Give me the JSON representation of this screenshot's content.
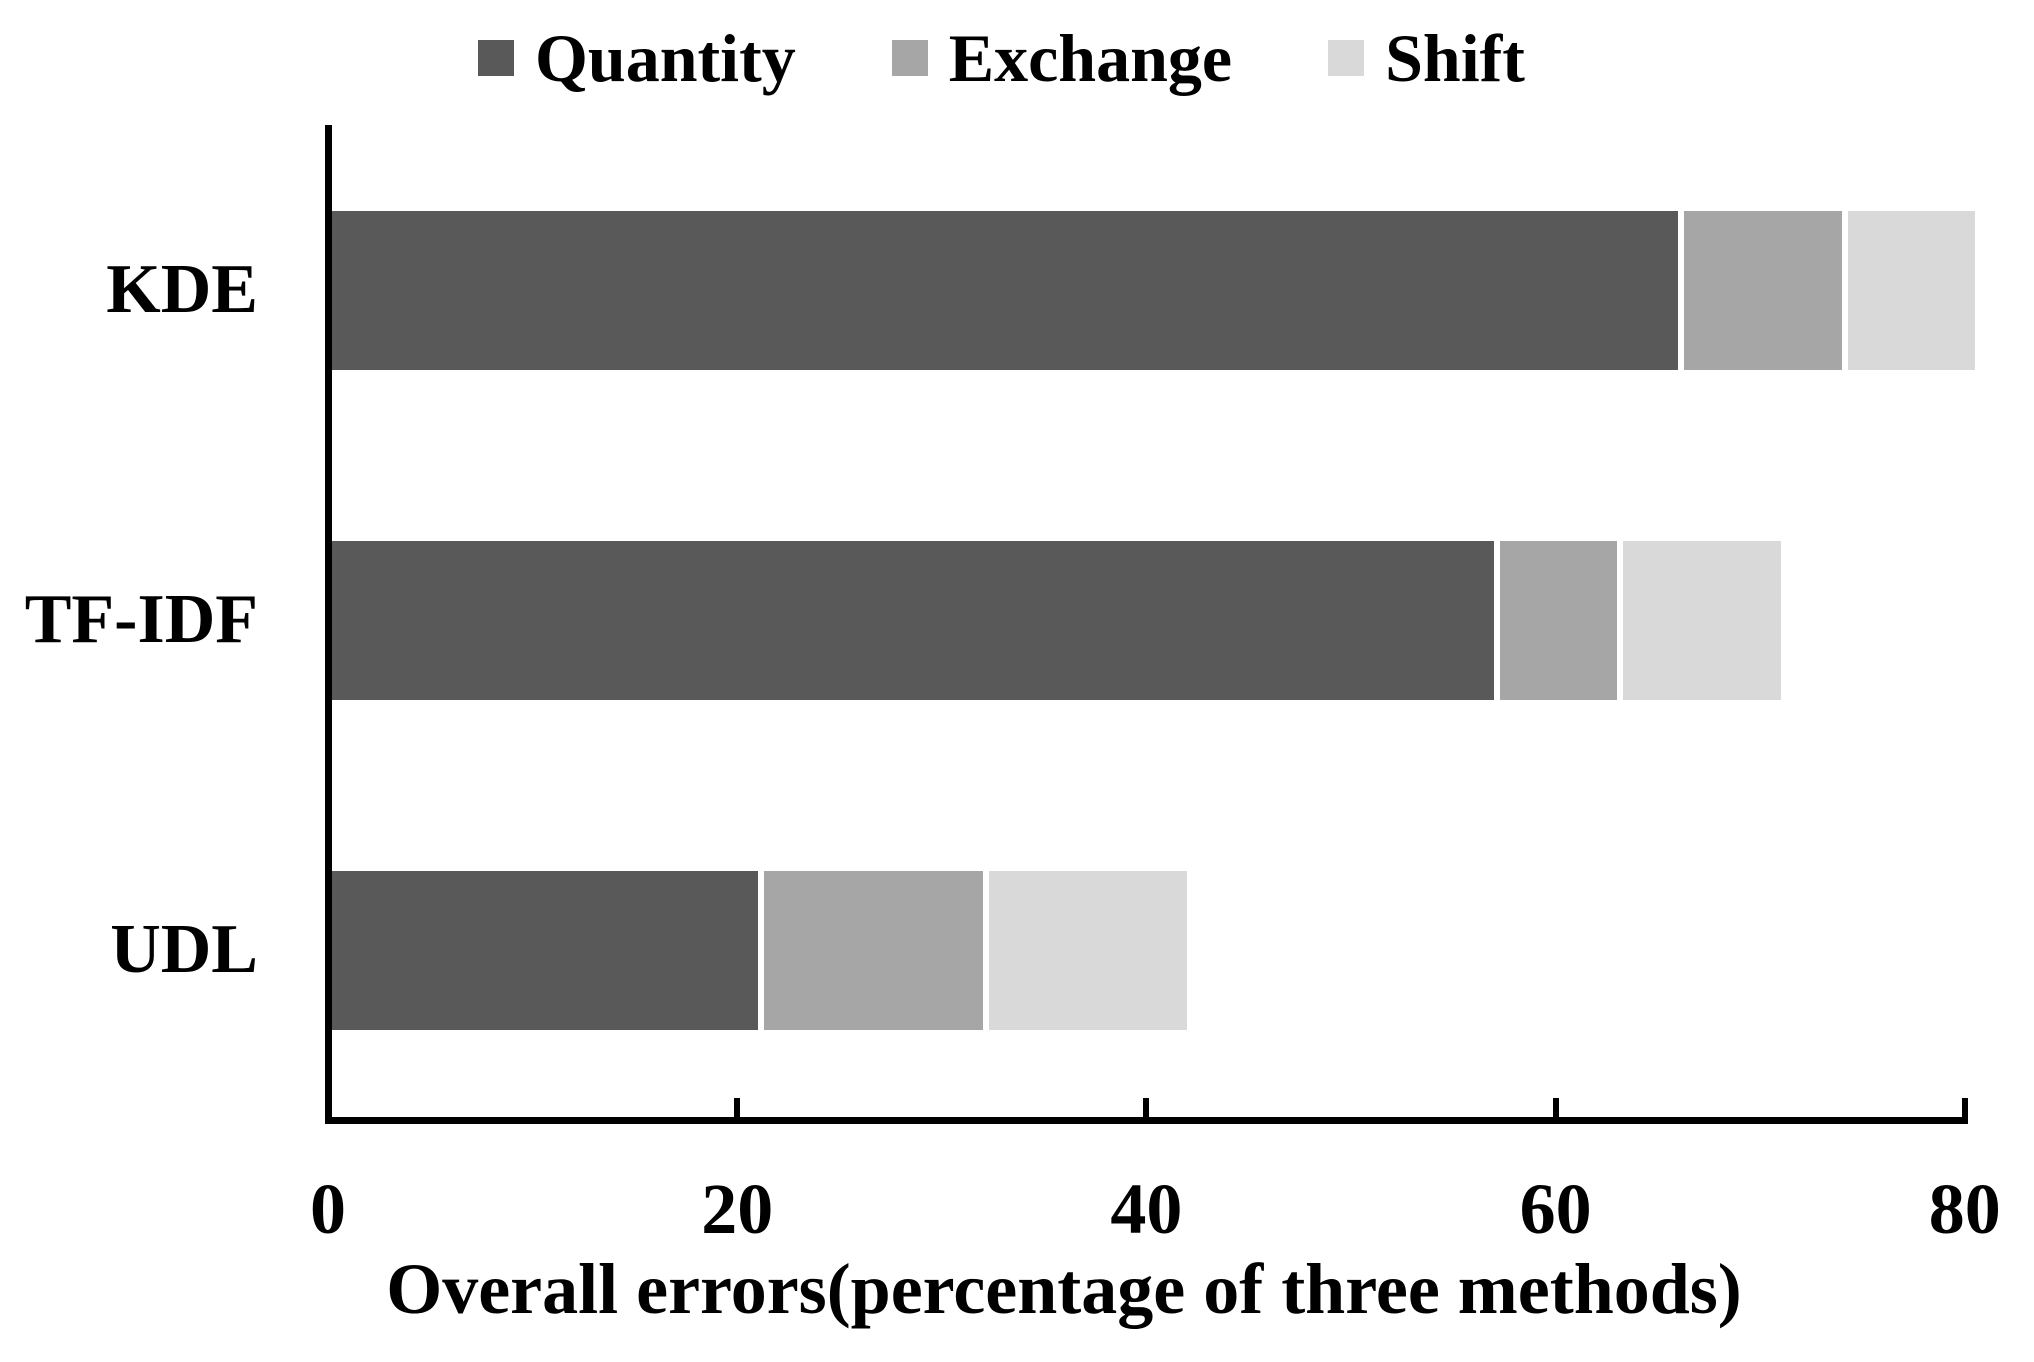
{
  "chart_data": {
    "type": "bar",
    "orientation": "horizontal",
    "stacked": true,
    "title": "",
    "xlabel": "Overall errors(percentage of three methods)",
    "ylabel": "",
    "xlim": [
      0,
      80
    ],
    "xticks": [
      0,
      20,
      40,
      60,
      80
    ],
    "xtick_labels": [
      "0",
      "20",
      "40",
      "60",
      "80"
    ],
    "grid": false,
    "legend_position": "top",
    "categories": [
      "KDE",
      "TF-IDF",
      "UDL"
    ],
    "series": [
      {
        "name": "Quantity",
        "color": "#595959",
        "values": [
          66,
          57,
          21
        ]
      },
      {
        "name": "Exchange",
        "color": "#a6a6a6",
        "values": [
          8,
          6,
          11
        ]
      },
      {
        "name": "Shift",
        "color": "#d9d9d9",
        "values": [
          6.5,
          8,
          10
        ]
      }
    ],
    "totals": [
      80.5,
      71,
      42
    ]
  },
  "colors": {
    "axis": "#000000",
    "text": "#000000",
    "background": "#ffffff"
  }
}
